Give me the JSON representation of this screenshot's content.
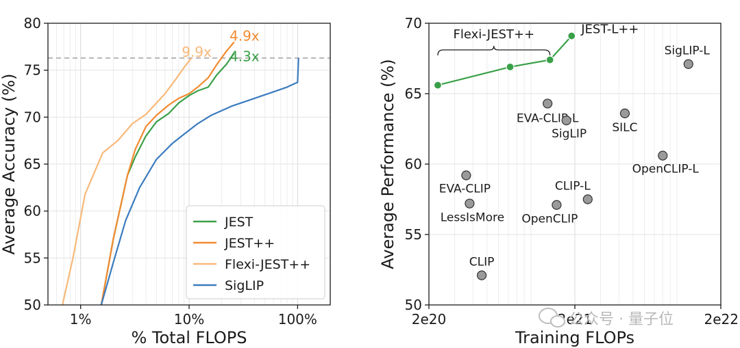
{
  "chart_data": [
    {
      "type": "line",
      "xscale": "log",
      "xlabel": "% Total FLOPS",
      "ylabel": "Average Accuracy (%)",
      "xlim": [
        0.5,
        200
      ],
      "ylim": [
        50,
        80
      ],
      "xticks": [
        {
          "value": 1,
          "label": "1%"
        },
        {
          "value": 10,
          "label": "10%"
        },
        {
          "value": 100,
          "label": "100%"
        }
      ],
      "yticks": [
        50,
        55,
        60,
        65,
        70,
        75,
        80
      ],
      "reference_line": {
        "y": 76.3
      },
      "series": [
        {
          "name": "JEST",
          "color": "#3aa048",
          "x": [
            1.55,
            2.0,
            2.7,
            3.2,
            4.0,
            5.0,
            6.5,
            8.0,
            10.0,
            12.0,
            15.0,
            18.0,
            22.0,
            26.0
          ],
          "y": [
            50.0,
            57.0,
            63.8,
            65.8,
            68.0,
            69.5,
            70.4,
            71.5,
            72.3,
            72.8,
            73.2,
            74.5,
            75.6,
            76.8
          ]
        },
        {
          "name": "JEST++",
          "color": "#f28a30",
          "x": [
            1.55,
            2.0,
            2.7,
            3.2,
            4.0,
            5.0,
            6.5,
            8.0,
            10.0,
            12.0,
            15.0,
            18.0,
            22.0,
            26.0
          ],
          "y": [
            50.0,
            57.0,
            63.8,
            66.6,
            69.0,
            70.2,
            71.3,
            72.0,
            72.5,
            73.2,
            74.2,
            75.6,
            77.0,
            78.0
          ]
        },
        {
          "name": "Flexi-JEST++",
          "color": "#f8b878",
          "x": [
            0.68,
            0.85,
            1.1,
            1.6,
            2.2,
            3.0,
            4.0,
            5.0,
            6.0,
            7.5,
            9.0,
            10.5
          ],
          "y": [
            50.0,
            55.0,
            61.8,
            66.2,
            67.5,
            69.3,
            70.3,
            71.5,
            72.5,
            74.0,
            75.3,
            76.3
          ]
        },
        {
          "name": "SigLIP",
          "color": "#3a7bbf",
          "x": [
            1.55,
            2.0,
            2.6,
            3.5,
            5.0,
            7.0,
            9.0,
            12.0,
            16.0,
            25.0,
            40.0,
            60.0,
            80.0,
            95.0,
            100.0,
            102.0
          ],
          "y": [
            50.0,
            54.5,
            59.0,
            62.5,
            65.5,
            67.2,
            68.2,
            69.3,
            70.2,
            71.2,
            72.0,
            72.7,
            73.2,
            73.6,
            73.7,
            76.3
          ]
        }
      ],
      "annotations": [
        {
          "text": "9.9x",
          "color": "#f8b878",
          "x": 9.6,
          "y": 76.3
        },
        {
          "text": "4.9x",
          "color": "#f28a30",
          "x": 26.5,
          "y": 78.0
        },
        {
          "text": "4.3x",
          "color": "#3aa048",
          "x": 26.5,
          "y": 76.6
        }
      ],
      "legend": {
        "position": "bottom-right",
        "entries": [
          "JEST",
          "JEST++",
          "Flexi-JEST++",
          "SigLIP"
        ]
      }
    },
    {
      "type": "scatter",
      "xscale": "log",
      "xlabel": "Training FLOPs",
      "ylabel": "Average Performance (%)",
      "xlim": [
        2e+20,
        2e+22
      ],
      "ylim": [
        50,
        70
      ],
      "xticks": [
        {
          "value": 2e+20,
          "label": "2e20"
        },
        {
          "value": 2e+21,
          "label": "2e21"
        },
        {
          "value": 2e+22,
          "label": "2e22"
        }
      ],
      "yticks": [
        50,
        55,
        60,
        65,
        70
      ],
      "jest_series": {
        "color": "#3aa048",
        "points": [
          {
            "x": 2.3e+20,
            "y": 65.6
          },
          {
            "x": 7.2e+20,
            "y": 66.9
          },
          {
            "x": 1.35e+21,
            "y": 67.4
          },
          {
            "x": 1.9e+21,
            "y": 69.1,
            "label": "JEST-L++"
          }
        ],
        "bracket_label": "Flexi-JEST++"
      },
      "baselines": [
        {
          "label": "SigLIP-L",
          "x": 1.2e+22,
          "y": 67.1
        },
        {
          "label": "EVA-CLIP-L",
          "x": 1.3e+21,
          "y": 64.3
        },
        {
          "label": "SigLIP",
          "x": 1.75e+21,
          "y": 63.1
        },
        {
          "label": "SILC",
          "x": 4.4e+21,
          "y": 63.6
        },
        {
          "label": "OpenCLIP-L",
          "x": 8e+21,
          "y": 60.6
        },
        {
          "label": "EVA-CLIP",
          "x": 3.6e+20,
          "y": 59.2
        },
        {
          "label": "CLIP-L",
          "x": 2.45e+21,
          "y": 57.5
        },
        {
          "label": "LessIsMore",
          "x": 3.8e+20,
          "y": 57.2
        },
        {
          "label": "OpenCLIP",
          "x": 1.5e+21,
          "y": 57.1
        },
        {
          "label": "CLIP",
          "x": 4.6e+20,
          "y": 52.1
        }
      ]
    }
  ],
  "watermark": {
    "text": "公众号 · 量子位"
  }
}
